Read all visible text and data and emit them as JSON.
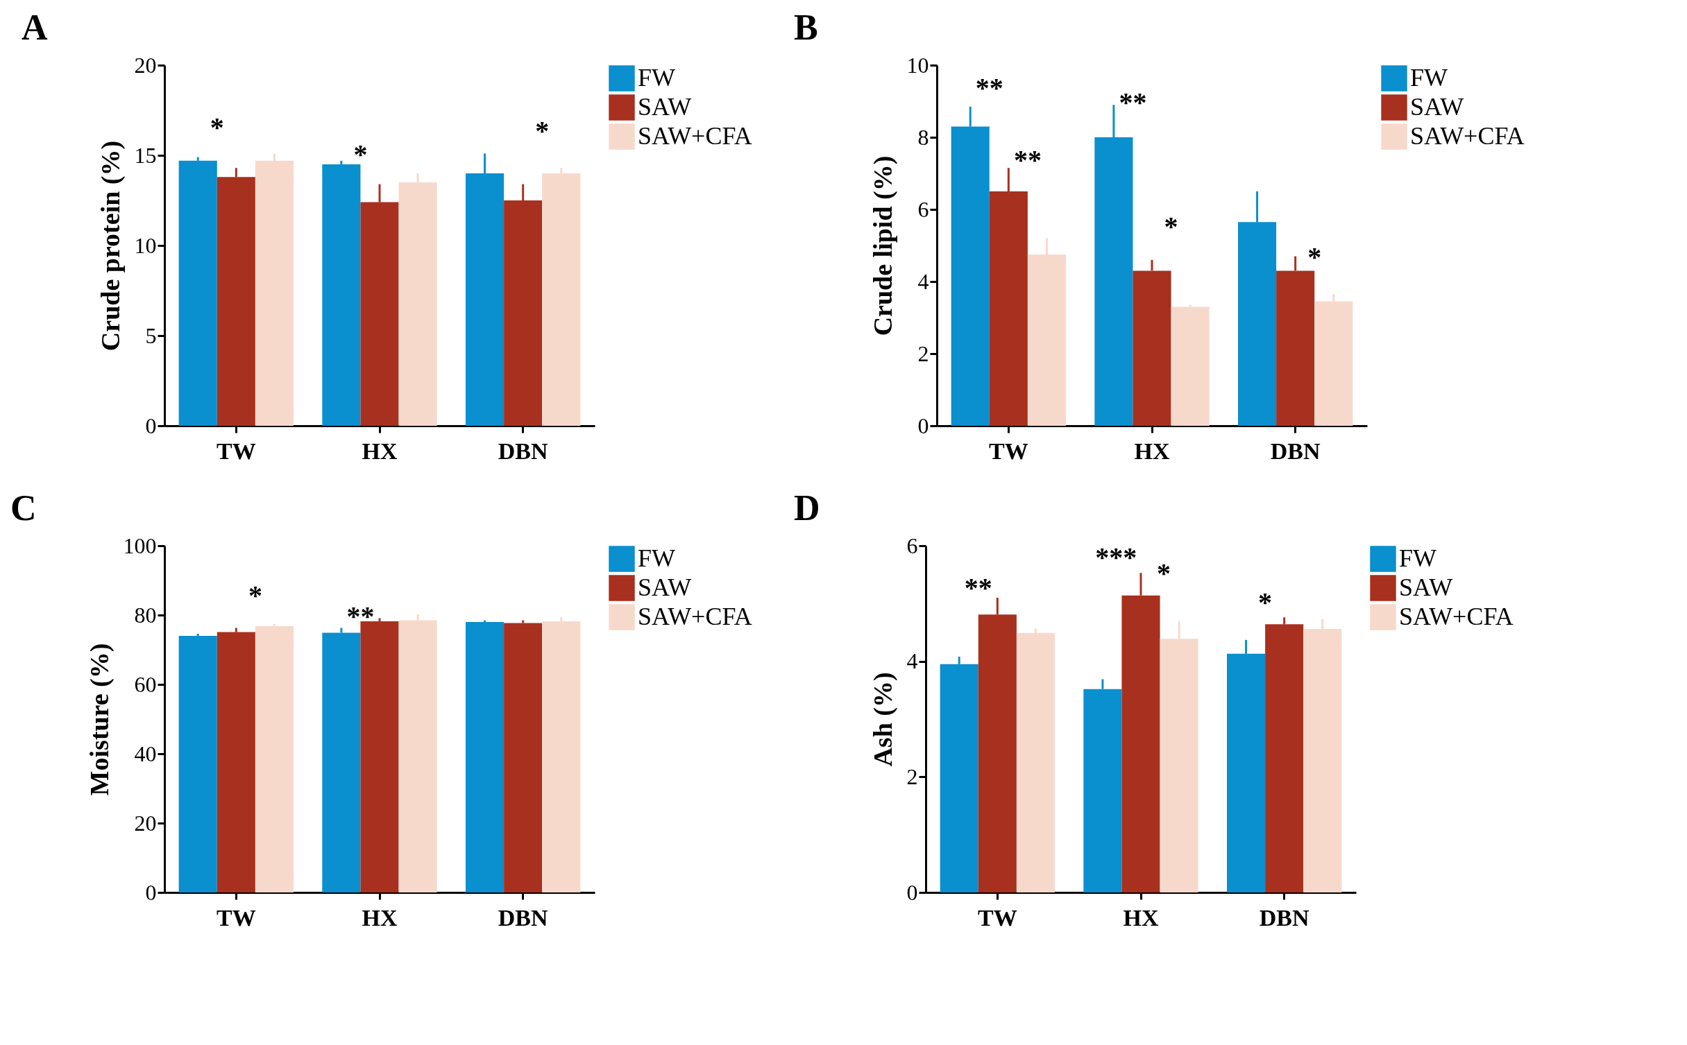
{
  "chart_data": [
    {
      "type": "bar",
      "title": "A",
      "ylabel": "Crude protein (%)",
      "categories": [
        "TW",
        "HX",
        "DBN"
      ],
      "ylim": [
        0,
        20
      ],
      "yticks": [
        0,
        5,
        10,
        15,
        20
      ],
      "legend": "right",
      "series": [
        {
          "name": "FW",
          "color": "#0a8fcf",
          "values": [
            14.7,
            14.5,
            14.0
          ],
          "errors": [
            [
              14.7,
              14.9
            ],
            [
              14.5,
              14.7
            ],
            [
              14.0,
              15.1
            ]
          ]
        },
        {
          "name": "SAW",
          "color": "#a8301e",
          "values": [
            13.8,
            12.4,
            12.5
          ],
          "errors": [
            [
              13.8,
              14.3
            ],
            [
              12.4,
              13.4
            ],
            [
              12.5,
              13.4
            ]
          ]
        },
        {
          "name": "SAW+CFA",
          "color": "#f7d9cc",
          "values": [
            14.7,
            13.5,
            14.0
          ],
          "errors": [
            [
              14.7,
              15.1
            ],
            [
              13.5,
              14.0
            ],
            [
              14.0,
              14.3
            ]
          ]
        }
      ],
      "annotations": [
        "*",
        "*",
        "*"
      ]
    },
    {
      "type": "bar",
      "title": "B",
      "ylabel": "Crude lipid (%)",
      "categories": [
        "TW",
        "HX",
        "DBN"
      ],
      "ylim": [
        0,
        10
      ],
      "yticks": [
        0,
        2,
        4,
        6,
        8,
        10
      ],
      "legend": "right",
      "series": [
        {
          "name": "FW",
          "color": "#0a8fcf",
          "values": [
            8.3,
            8.0,
            5.65
          ],
          "errors": [
            [
              8.3,
              8.85
            ],
            [
              8.0,
              8.9
            ],
            [
              5.65,
              6.5
            ]
          ]
        },
        {
          "name": "SAW",
          "color": "#a8301e",
          "values": [
            6.5,
            4.3,
            4.3
          ],
          "errors": [
            [
              6.5,
              7.15
            ],
            [
              4.3,
              4.6
            ],
            [
              4.3,
              4.7
            ]
          ]
        },
        {
          "name": "SAW+CFA",
          "color": "#f7d9cc",
          "values": [
            4.75,
            3.3,
            3.45
          ],
          "errors": [
            [
              4.75,
              5.2
            ],
            [
              3.3,
              3.35
            ],
            [
              3.45,
              3.65
            ]
          ]
        }
      ],
      "annotations": [
        "**",
        "**",
        "**",
        "*",
        "*"
      ]
    },
    {
      "type": "bar",
      "title": "C",
      "ylabel": "Moisture (%)",
      "categories": [
        "TW",
        "HX",
        "DBN"
      ],
      "ylim": [
        0,
        100
      ],
      "yticks": [
        0,
        20,
        40,
        60,
        80,
        100
      ],
      "legend": "right",
      "series": [
        {
          "name": "FW",
          "color": "#0a8fcf",
          "values": [
            74,
            74.9,
            78
          ],
          "errors": [
            [
              74,
              74.6
            ],
            [
              74.9,
              76.3
            ],
            [
              78,
              78.5
            ]
          ]
        },
        {
          "name": "SAW",
          "color": "#a8301e",
          "values": [
            75.1,
            78.2,
            77.7
          ],
          "errors": [
            [
              75.1,
              76.3
            ],
            [
              78.2,
              79.1
            ],
            [
              77.7,
              78.5
            ]
          ]
        },
        {
          "name": "SAW+CFA",
          "color": "#f7d9cc",
          "values": [
            76.8,
            78.5,
            78.2
          ],
          "errors": [
            [
              76.8,
              77.4
            ],
            [
              78.5,
              80.2
            ],
            [
              78.2,
              79.4
            ]
          ]
        }
      ],
      "annotations": [
        "*",
        "**"
      ]
    },
    {
      "type": "bar",
      "title": "D",
      "ylabel": "Ash (%)",
      "categories": [
        "TW",
        "HX",
        "DBN"
      ],
      "ylim": [
        0,
        6
      ],
      "yticks": [
        0,
        2,
        4,
        6
      ],
      "legend": "right",
      "series": [
        {
          "name": "FW",
          "color": "#0a8fcf",
          "values": [
            3.95,
            3.52,
            4.13
          ],
          "errors": [
            [
              3.95,
              4.08
            ],
            [
              3.52,
              3.69
            ],
            [
              4.13,
              4.37
            ]
          ]
        },
        {
          "name": "SAW",
          "color": "#a8301e",
          "values": [
            4.81,
            5.14,
            4.64
          ],
          "errors": [
            [
              4.81,
              5.1
            ],
            [
              5.14,
              5.53
            ],
            [
              4.64,
              4.76
            ]
          ]
        },
        {
          "name": "SAW+CFA",
          "color": "#f7d9cc",
          "values": [
            4.49,
            4.39,
            4.56
          ],
          "errors": [
            [
              4.49,
              4.57
            ],
            [
              4.39,
              4.69
            ],
            [
              4.56,
              4.73
            ]
          ]
        }
      ],
      "annotations": [
        "**",
        "***",
        "*",
        "*"
      ]
    }
  ]
}
